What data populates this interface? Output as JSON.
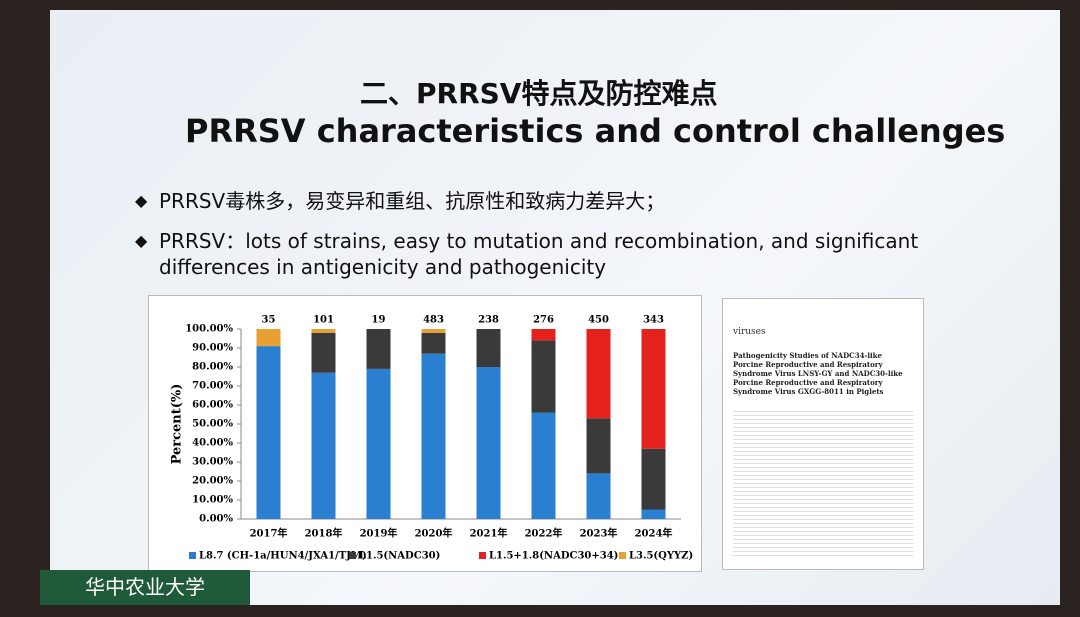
{
  "slide": {
    "title_cn": "二、PRRSV特点及防控难点",
    "title_en": "PRRSV characteristics and control challenges",
    "bullets": [
      "PRRSV毒株多，易变异和重组、抗原性和致病力差异大；",
      "PRRSV：lots of strains, easy to mutation and recombination, and significant differences in antigenicity and pathogenicity"
    ],
    "paper": {
      "journal": "viruses",
      "title": "Pathogenicity Studies of NADC34-like Porcine Reproductive and Respiratory Syndrome Virus LNSY-GY and NADC30-like Porcine Reproductive and Respiratory Syndrome Virus GXGG-8011 in Piglets"
    },
    "logo": "华中农业大学"
  },
  "chart_data": {
    "type": "stacked_bar",
    "y_label": "Percent(%)",
    "categories": [
      "2017年",
      "2018年",
      "2019年",
      "2020年",
      "2021年",
      "2022年",
      "2023年",
      "2024年"
    ],
    "sample_sizes": [
      35,
      101,
      19,
      483,
      238,
      276,
      450,
      343
    ],
    "series": [
      {
        "name": "L8.7 (CH-1a/HUN4/JXA1/TJM)",
        "color": "#2a7fd0",
        "values": [
          91,
          77,
          79,
          87,
          80,
          56,
          24,
          5
        ]
      },
      {
        "name": "L1.5(NADC30)",
        "color": "#3a3a3a",
        "values": [
          0,
          21,
          21,
          11,
          20,
          38,
          29,
          32
        ]
      },
      {
        "name": "L1.5+1.8(NADC30+34)",
        "color": "#e5211d",
        "values": [
          0,
          0,
          0,
          0,
          0,
          6,
          47,
          63
        ]
      },
      {
        "name": "L3.5(QYYZ)",
        "color": "#e8a030",
        "values": [
          9,
          2,
          0,
          2,
          0,
          0,
          0,
          0
        ]
      }
    ],
    "ylim": [
      0,
      100
    ],
    "yticks": [
      {
        "value": 0,
        "label": "0.00%"
      },
      {
        "value": 10,
        "label": "10.00%"
      },
      {
        "value": 20,
        "label": "20.00%"
      },
      {
        "value": 30,
        "label": "30.00%"
      },
      {
        "value": 40,
        "label": "40.00%"
      },
      {
        "value": 50,
        "label": "50.00%"
      },
      {
        "value": 60,
        "label": "60.00%"
      },
      {
        "value": 70,
        "label": "70.00%"
      },
      {
        "value": 80,
        "label": "80.00%"
      },
      {
        "value": 90,
        "label": "90.00%"
      },
      {
        "value": 100,
        "label": "100.00%"
      }
    ],
    "grid": false
  }
}
